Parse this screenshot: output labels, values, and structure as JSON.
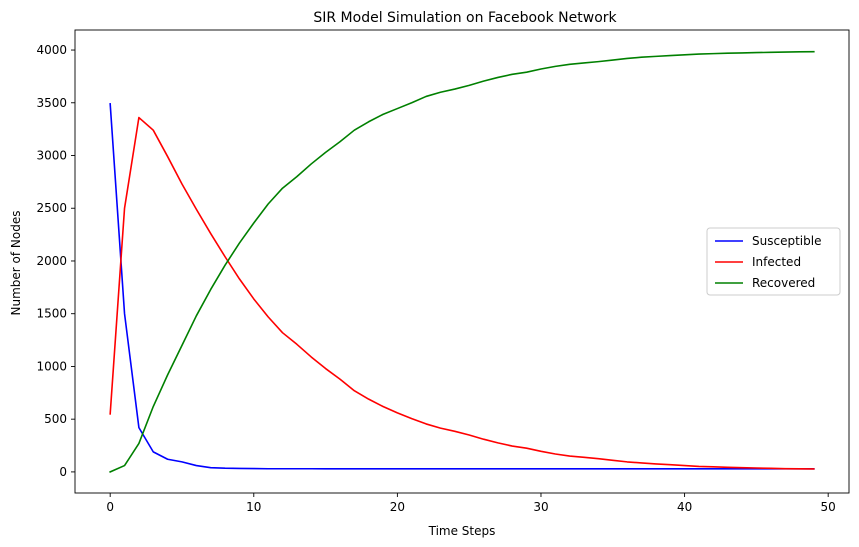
{
  "chart_data": {
    "type": "line",
    "title": "SIR Model Simulation on Facebook Network",
    "xlabel": "Time Steps",
    "ylabel": "Number of Nodes",
    "xlim": [
      -2.45,
      51.45
    ],
    "ylim": [
      -200,
      4190
    ],
    "xticks": [
      0,
      10,
      20,
      30,
      40,
      50
    ],
    "yticks": [
      0,
      500,
      1000,
      1500,
      2000,
      2500,
      3000,
      3500,
      4000
    ],
    "grid": false,
    "legend_position": "center-right",
    "x": [
      0,
      1,
      2,
      3,
      4,
      5,
      6,
      7,
      8,
      9,
      10,
      11,
      12,
      13,
      14,
      15,
      16,
      17,
      18,
      19,
      20,
      21,
      22,
      23,
      24,
      25,
      26,
      27,
      28,
      29,
      30,
      31,
      32,
      33,
      34,
      35,
      36,
      37,
      38,
      39,
      40,
      41,
      42,
      43,
      44,
      45,
      46,
      47,
      48,
      49
    ],
    "series": [
      {
        "name": "Susceptible",
        "color": "#0000ff",
        "values": [
          3490,
          1500,
          420,
          190,
          120,
          95,
          60,
          40,
          35,
          33,
          32,
          30,
          30,
          30,
          30,
          29,
          29,
          29,
          29,
          29,
          29,
          29,
          29,
          29,
          29,
          29,
          29,
          29,
          29,
          29,
          29,
          29,
          29,
          29,
          29,
          29,
          29,
          29,
          29,
          29,
          29,
          29,
          29,
          29,
          29,
          29,
          29,
          29,
          29,
          29
        ]
      },
      {
        "name": "Infected",
        "color": "#ff0000",
        "values": [
          550,
          2500,
          3360,
          3240,
          2990,
          2730,
          2490,
          2260,
          2040,
          1830,
          1640,
          1470,
          1320,
          1210,
          1090,
          980,
          880,
          770,
          690,
          620,
          560,
          505,
          455,
          415,
          385,
          350,
          310,
          275,
          245,
          225,
          195,
          170,
          150,
          138,
          125,
          110,
          95,
          85,
          76,
          68,
          60,
          52,
          48,
          44,
          40,
          37,
          34,
          31,
          29,
          28
        ]
      },
      {
        "name": "Recovered",
        "color": "#008000",
        "values": [
          0,
          60,
          270,
          620,
          920,
          1200,
          1480,
          1730,
          1960,
          2170,
          2360,
          2540,
          2690,
          2800,
          2920,
          3030,
          3130,
          3240,
          3320,
          3390,
          3445,
          3500,
          3560,
          3600,
          3630,
          3665,
          3705,
          3740,
          3770,
          3790,
          3820,
          3845,
          3865,
          3878,
          3890,
          3905,
          3920,
          3932,
          3940,
          3948,
          3955,
          3962,
          3966,
          3970,
          3973,
          3976,
          3978,
          3981,
          3983,
          3984
        ]
      }
    ]
  }
}
